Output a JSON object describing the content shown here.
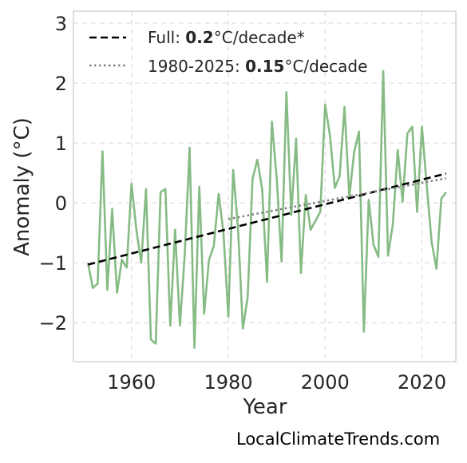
{
  "chart_data": {
    "type": "line",
    "title": "",
    "xlabel": "Year",
    "ylabel": "Anomaly (°C)",
    "xlim": [
      1948,
      2027
    ],
    "ylim": [
      -2.65,
      3.2
    ],
    "x_ticks": [
      1960,
      1980,
      2000,
      2020
    ],
    "y_ticks": [
      -2,
      -1,
      0,
      1,
      2,
      3
    ],
    "y_tick_labels": [
      "−2",
      "−1",
      "0",
      "1",
      "2",
      "3"
    ],
    "grid": true,
    "legend_position": "top-left",
    "series": [
      {
        "kind": "anomaly",
        "color": "#86bb84",
        "x": [
          1951,
          1952,
          1953,
          1954,
          1955,
          1956,
          1957,
          1958,
          1959,
          1960,
          1961,
          1962,
          1963,
          1964,
          1965,
          1966,
          1967,
          1968,
          1969,
          1970,
          1971,
          1972,
          1973,
          1974,
          1975,
          1976,
          1977,
          1978,
          1979,
          1980,
          1981,
          1982,
          1983,
          1984,
          1985,
          1986,
          1987,
          1988,
          1989,
          1990,
          1991,
          1992,
          1993,
          1994,
          1995,
          1996,
          1997,
          1998,
          1999,
          2000,
          2001,
          2002,
          2003,
          2004,
          2005,
          2006,
          2007,
          2008,
          2009,
          2010,
          2011,
          2012,
          2013,
          2014,
          2015,
          2016,
          2017,
          2018,
          2019,
          2020,
          2021,
          2022,
          2023,
          2024,
          2025
        ],
        "y": [
          -1.0,
          -1.42,
          -1.35,
          0.86,
          -1.45,
          -0.1,
          -1.5,
          -0.95,
          -1.08,
          0.32,
          -0.45,
          -1.0,
          0.23,
          -2.28,
          -2.35,
          0.18,
          0.23,
          -2.05,
          -0.45,
          -2.05,
          -0.85,
          0.92,
          -2.42,
          0.27,
          -1.85,
          -0.95,
          -0.72,
          0.15,
          -0.5,
          -1.9,
          0.55,
          -0.42,
          -2.1,
          -1.57,
          0.4,
          0.72,
          0.22,
          -1.32,
          1.36,
          0.4,
          -0.98,
          1.85,
          -0.2,
          1.07,
          -1.17,
          0.13,
          -0.45,
          -0.3,
          -0.15,
          1.64,
          1.12,
          0.25,
          0.45,
          1.6,
          0.1,
          0.85,
          1.19,
          -2.15,
          0.05,
          -0.7,
          -0.9,
          2.2,
          -0.88,
          -0.35,
          0.88,
          0.02,
          1.16,
          1.27,
          -0.15,
          1.27,
          0.28,
          -0.65,
          -1.1,
          0.07,
          0.18
        ]
      },
      {
        "name": "Full",
        "kind": "trend-full",
        "color": "#000000",
        "style": "dashed",
        "x": [
          1951,
          2025
        ],
        "y": [
          -1.03,
          0.49
        ]
      },
      {
        "name": "1980-2025",
        "kind": "trend-recent",
        "color": "#808080",
        "style": "dotted",
        "x": [
          1980,
          2025
        ],
        "y": [
          -0.27,
          0.41
        ]
      }
    ],
    "legend": [
      {
        "prefix": "Full: ",
        "bold": "0.2",
        "suffix": "°C/decade*"
      },
      {
        "prefix": "1980-2025: ",
        "bold": "0.15",
        "suffix": "°C/decade"
      }
    ]
  },
  "watermark": "LocalClimateTrends.com"
}
